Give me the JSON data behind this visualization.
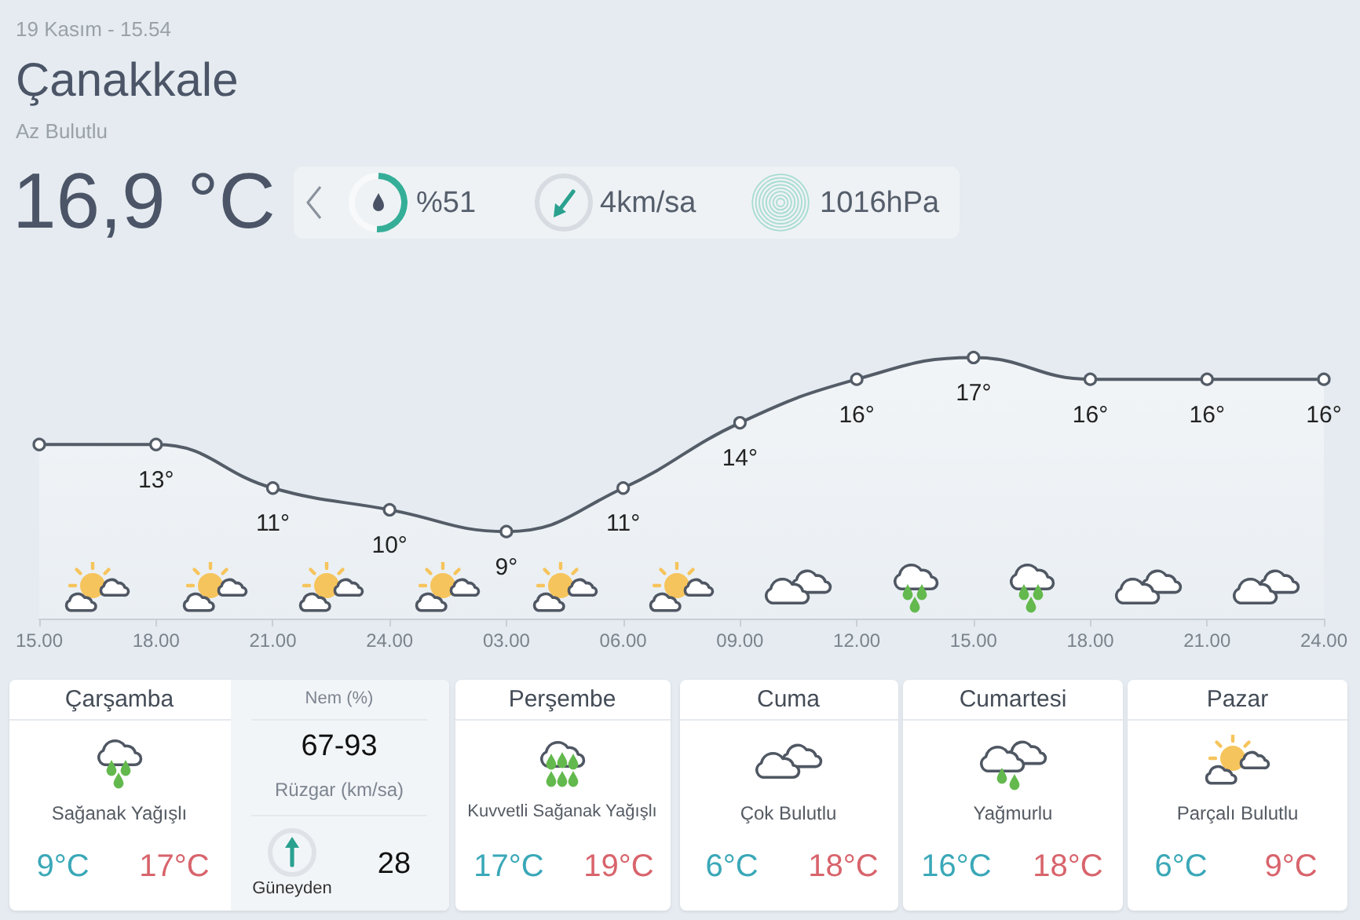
{
  "chart_data": {
    "type": "area",
    "title": "Çanakkale",
    "subtitle": "Az Bulutlu",
    "annotations": [
      "19 Kasım - 15.54",
      "16,9 °C",
      "%51",
      "4km/sa",
      "1016hPa",
      "Çarşamba",
      "Sağanak Yağışlı",
      "9°C",
      "17°C",
      "Nem (%)",
      "67-93",
      "Rüzgar (km/sa)",
      "Güneyden",
      "28",
      "Perşembe",
      "Kuvvetli Sağanak Yağışlı",
      "17°C",
      "19°C",
      "Cuma",
      "Çok Bulutlu",
      "6°C",
      "18°C",
      "Cumartesi",
      "Yağmurlu",
      "16°C",
      "18°C",
      "Pazar",
      "Parçalı Bulutlu",
      "6°C",
      "9°C"
    ],
    "categories": [
      "15.00",
      "18.00",
      "21.00",
      "24.00",
      "03.00",
      "06.00",
      "09.00",
      "12.00",
      "15.00",
      "18.00",
      "21.00",
      "24.00"
    ],
    "values": [
      13,
      13,
      11,
      10,
      9,
      11,
      14,
      16,
      17,
      16,
      16,
      16
    ],
    "value_labels": [
      null,
      "13°",
      "11°",
      "10°",
      "9°",
      "11°",
      "14°",
      "16°",
      "17°",
      "16°",
      "16°",
      "16°"
    ],
    "color": "#545c67",
    "marker": "circle",
    "line_style": "solid"
  }
}
